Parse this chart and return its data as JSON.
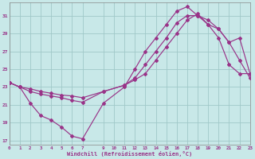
{
  "bg_color": "#c8e8e8",
  "grid_color": "#a0c8c8",
  "line_color": "#993388",
  "xlim": [
    0,
    23
  ],
  "ylim": [
    16.5,
    32.5
  ],
  "yticks": [
    17,
    19,
    21,
    23,
    25,
    27,
    29,
    31
  ],
  "xticks": [
    0,
    1,
    2,
    3,
    4,
    5,
    6,
    7,
    9,
    10,
    11,
    12,
    13,
    14,
    15,
    16,
    17,
    18,
    19,
    20,
    21,
    22,
    23
  ],
  "xlabel": "Windchill (Refroidissement éolien,°C)",
  "series1_x": [
    0,
    1,
    2,
    3,
    4,
    5,
    6,
    7,
    9,
    11,
    12,
    13,
    14,
    15,
    16,
    17,
    18,
    19,
    20,
    21,
    22,
    23
  ],
  "series1_y": [
    23.5,
    23.0,
    21.2,
    19.8,
    19.3,
    18.5,
    17.5,
    17.2,
    21.2,
    23.0,
    25.0,
    27.0,
    28.5,
    30.0,
    31.5,
    32.0,
    31.0,
    30.0,
    29.5,
    28.0,
    26.0,
    24.0
  ],
  "series2_x": [
    0,
    1,
    2,
    3,
    4,
    5,
    6,
    7,
    9,
    11,
    12,
    13,
    14,
    15,
    16,
    17,
    18,
    19,
    20,
    21,
    22,
    23
  ],
  "series2_y": [
    23.5,
    23.0,
    22.5,
    22.2,
    22.0,
    21.8,
    21.5,
    21.3,
    22.5,
    23.2,
    24.0,
    25.5,
    27.0,
    28.5,
    30.2,
    31.0,
    31.0,
    30.5,
    29.5,
    28.0,
    28.5,
    24.5
  ],
  "series3_x": [
    0,
    1,
    2,
    3,
    4,
    5,
    6,
    7,
    9,
    11,
    12,
    13,
    14,
    15,
    16,
    17,
    18,
    19,
    20,
    21,
    22,
    23
  ],
  "series3_y": [
    23.5,
    23.0,
    22.8,
    22.5,
    22.3,
    22.1,
    22.0,
    21.8,
    22.5,
    23.2,
    23.8,
    24.5,
    26.0,
    27.5,
    29.0,
    30.5,
    31.2,
    30.0,
    28.5,
    25.5,
    24.5,
    24.5
  ]
}
